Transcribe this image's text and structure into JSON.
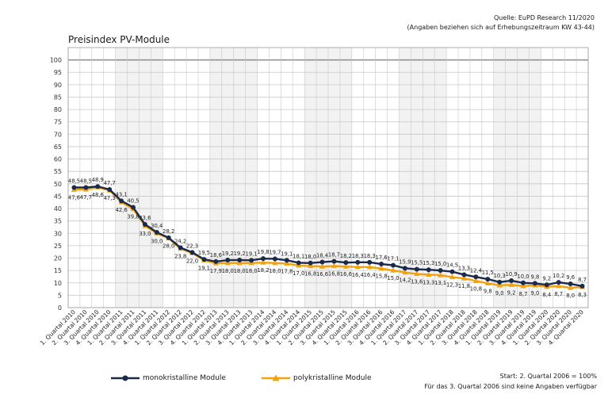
{
  "header": {
    "source_line1": "Quelle: EuPD Research 11/2020",
    "source_line2": "(Angaben beziehen sich auf Erhebungszeitraum KW 43-44)",
    "title": "Preisindex PV-Module"
  },
  "footer": {
    "note1": "Start: 2. Quartal 2006 = 100%",
    "note2": "Für das 3. Quartal 2006 sind keine Angaben verfügbar"
  },
  "colors": {
    "mono": "#1b2a4a",
    "poly": "#f2a20c",
    "grid": "#c8c8c8",
    "ref": "#8a8a8a"
  },
  "chart_data": {
    "type": "line",
    "title": "Preisindex PV-Module",
    "ylim": [
      0,
      100
    ],
    "yticks": [
      0,
      5,
      10,
      15,
      20,
      25,
      30,
      35,
      40,
      45,
      50,
      55,
      60,
      65,
      70,
      75,
      80,
      85,
      90,
      95,
      100
    ],
    "grid": true,
    "legend": "bottom",
    "categories": [
      "1. Quartal 2010",
      "2. Quartal 2010",
      "3. Quartal 2010",
      "4. Quartal 2010",
      "1. Quartal 2011",
      "2. Quartal 2011",
      "3. Quartal 2011",
      "4. Quartal 2011",
      "1. Quartal 2012",
      "2. Quartal 2012",
      "3. Quartal 2012",
      "4. Quartal 2012",
      "1. Quartal 2013",
      "2. Quartal 2013",
      "3. Quartal 2013",
      "4. Quartal 2013",
      "1. Quartal 2014",
      "2. Quartal 2014",
      "3. Quartal 2014",
      "4. Quartal 2014",
      "1. Quartal 2015",
      "2. Quartal 2015",
      "3. Quartal 2015",
      "4. Quartal 2015",
      "1. Quartal 2016",
      "2. Quartal 2016",
      "3. Quartal 2016",
      "4. Quartal 2016",
      "1. Quartal 2017",
      "2. Quartal 2017",
      "3. Quartal 2017",
      "4. Quartal 2017",
      "1. Quartal 2018",
      "2. Quartal 2018",
      "3. Quartal 2018",
      "4. Quartal 2018",
      "1. Quartal 2019",
      "2. Quartal 2019",
      "3. Quartal 2019",
      "4. Quartal 2019",
      "1. Quartal 2020",
      "2. Quartal 2020",
      "3. Quartal 2020",
      "4. Quartal 2020"
    ],
    "series": [
      {
        "name": "monokristalline Module",
        "marker": "circle",
        "values": [
          48.5,
          48.5,
          48.9,
          47.7,
          43.1,
          40.5,
          33.6,
          30.4,
          28.2,
          24.2,
          22.3,
          19.5,
          18.6,
          19.2,
          19.2,
          19.1,
          19.8,
          19.7,
          19.1,
          18.1,
          18.0,
          18.4,
          18.7,
          18.2,
          18.3,
          18.3,
          17.6,
          17.1,
          15.9,
          15.5,
          15.3,
          15.0,
          14.5,
          13.3,
          12.4,
          11.5,
          10.3,
          10.9,
          10.0,
          9.8,
          9.2,
          10.2,
          9.6,
          8.7
        ],
        "labels": [
          "48,5",
          "48,5",
          "48,9",
          "47,7",
          "43,1",
          "40,5",
          "33,6",
          "30,4",
          "28,2",
          "24,2",
          "22,3",
          "19,5",
          "18,6",
          "19,2",
          "19,2",
          "19,1",
          "19,8",
          "19,7",
          "19,1",
          "18,1",
          "18,0",
          "18,4",
          "18,7",
          "18,2",
          "18,3",
          "18,3",
          "17,6",
          "17,1",
          "15,9",
          "15,5",
          "15,3",
          "15,0",
          "14,5",
          "13,3",
          "12,4",
          "11,5",
          "10,3",
          "10,9",
          "10,0",
          "9,8",
          "9,2",
          "10,2",
          "9,6",
          "8,7"
        ]
      },
      {
        "name": "polykristalline Module",
        "marker": "triangle",
        "values": [
          47.6,
          47.7,
          48.6,
          47.3,
          42.6,
          39.8,
          33.0,
          30.0,
          28.0,
          23.8,
          22.0,
          19.1,
          17.9,
          18.0,
          18.0,
          18.0,
          18.2,
          18.0,
          17.8,
          17.0,
          16.8,
          16.6,
          16.8,
          16.6,
          16.4,
          16.4,
          15.8,
          15.0,
          14.2,
          13.6,
          13.3,
          13.1,
          12.3,
          11.8,
          10.8,
          9.8,
          9.0,
          9.2,
          8.7,
          9.0,
          8.4,
          8.7,
          8.0,
          8.3
        ],
        "labels": [
          "47,6",
          "47,7",
          "48,6",
          "47,3",
          "42,6",
          "39,8",
          "33,0",
          "30,0",
          "28,0",
          "23,8",
          "22,0",
          "19,1",
          "17,9",
          "18,0",
          "18,0",
          "18,0",
          "18,2",
          "18,0",
          "17,8",
          "17,0",
          "16,8",
          "16,6",
          "16,8",
          "16,6",
          "16,4",
          "16,4",
          "15,8",
          "15,0",
          "14,2",
          "13,6",
          "13,3",
          "13,1",
          "12,3",
          "11,8",
          "10,8",
          "9,8",
          "9,0",
          "9,2",
          "8,7",
          "9,0",
          "8,4",
          "8,7",
          "8,0",
          "8,3"
        ]
      }
    ]
  }
}
